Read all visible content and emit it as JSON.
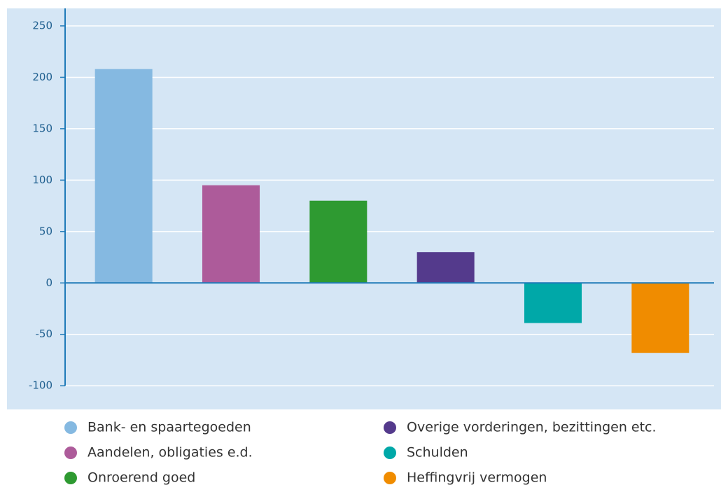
{
  "chart_data": {
    "type": "bar",
    "series": [
      {
        "name": "Bank- en spaartegoeden",
        "color": "#85b9e1",
        "values": [
          208
        ]
      },
      {
        "name": "Aandelen, obligaties e.d.",
        "color": "#ad5b9a",
        "values": [
          95
        ]
      },
      {
        "name": "Onroerend goed",
        "color": "#2e9a31",
        "values": [
          80
        ]
      },
      {
        "name": "Overige vorderingen, bezittingen etc.",
        "color": "#543a8c",
        "values": [
          30
        ]
      },
      {
        "name": "Schulden",
        "color": "#00a8a8",
        "values": [
          -39
        ]
      },
      {
        "name": "Heffingvrij vermogen",
        "color": "#f08c00",
        "values": [
          -68
        ]
      }
    ],
    "ylim": [
      -123,
      267
    ],
    "yticks": [
      -100,
      -50,
      0,
      50,
      100,
      150,
      200,
      250
    ],
    "grid": true
  }
}
